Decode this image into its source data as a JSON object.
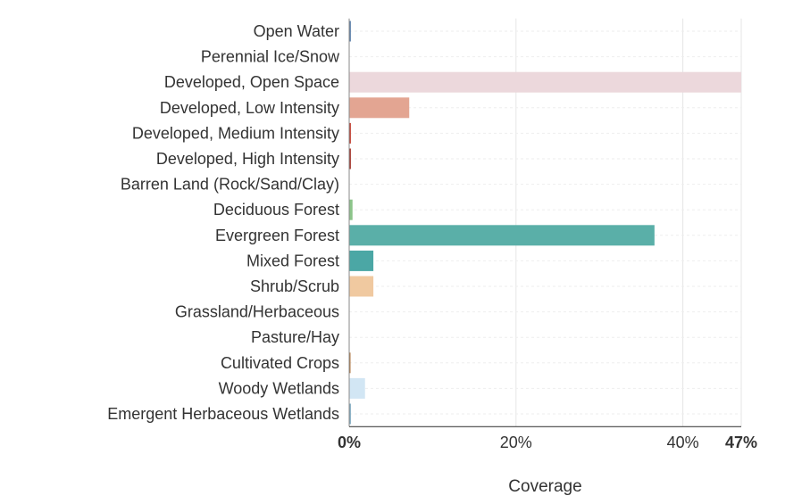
{
  "chart_data": {
    "type": "bar",
    "orientation": "horizontal",
    "xlabel": "Coverage",
    "xlim": [
      0,
      47
    ],
    "x_ticks": [
      {
        "value": 0,
        "label": "0%",
        "bold": true
      },
      {
        "value": 20,
        "label": "20%",
        "bold": false
      },
      {
        "value": 40,
        "label": "40%",
        "bold": false
      },
      {
        "value": 47,
        "label": "47%",
        "bold": true
      }
    ],
    "grid": true,
    "categories": [
      "Open Water",
      "Perennial Ice/Snow",
      "Developed, Open Space",
      "Developed, Low Intensity",
      "Developed, Medium Intensity",
      "Developed, High Intensity",
      "Barren Land (Rock/Sand/Clay)",
      "Deciduous Forest",
      "Evergreen Forest",
      "Mixed Forest",
      "Shrub/Scrub",
      "Grassland/Herbaceous",
      "Pasture/Hay",
      "Cultivated Crops",
      "Woody Wetlands",
      "Emergent Herbaceous Wetlands"
    ],
    "values": [
      0.2,
      0.0,
      47.0,
      7.2,
      0.2,
      0.2,
      0.0,
      0.4,
      36.6,
      2.9,
      2.9,
      0.0,
      0.0,
      0.1,
      1.9,
      0.2
    ],
    "colors": [
      "#466b9f",
      "#d1def8",
      "#dec5c5",
      "#d99282",
      "#eb0000",
      "#ab0000",
      "#b3ac9f",
      "#68ab5f",
      "#1c5f2c",
      "#b5c58f",
      "#ccb879",
      "#dfdfc2",
      "#dcd939",
      "#ab6c28",
      "#b8d9eb",
      "#6c9fb8"
    ],
    "display_colors": [
      "#5a7fa8",
      "#dce6f5",
      "#ecd8dc",
      "#e3a592",
      "#c0392b",
      "#a33025",
      "#c8c2b6",
      "#8cc48a",
      "#5aafa8",
      "#4ba7a5",
      "#f0c9a0",
      "#e6e6cc",
      "#e0dc7a",
      "#b07a45",
      "#d2e6f4",
      "#7fa9c0"
    ]
  }
}
